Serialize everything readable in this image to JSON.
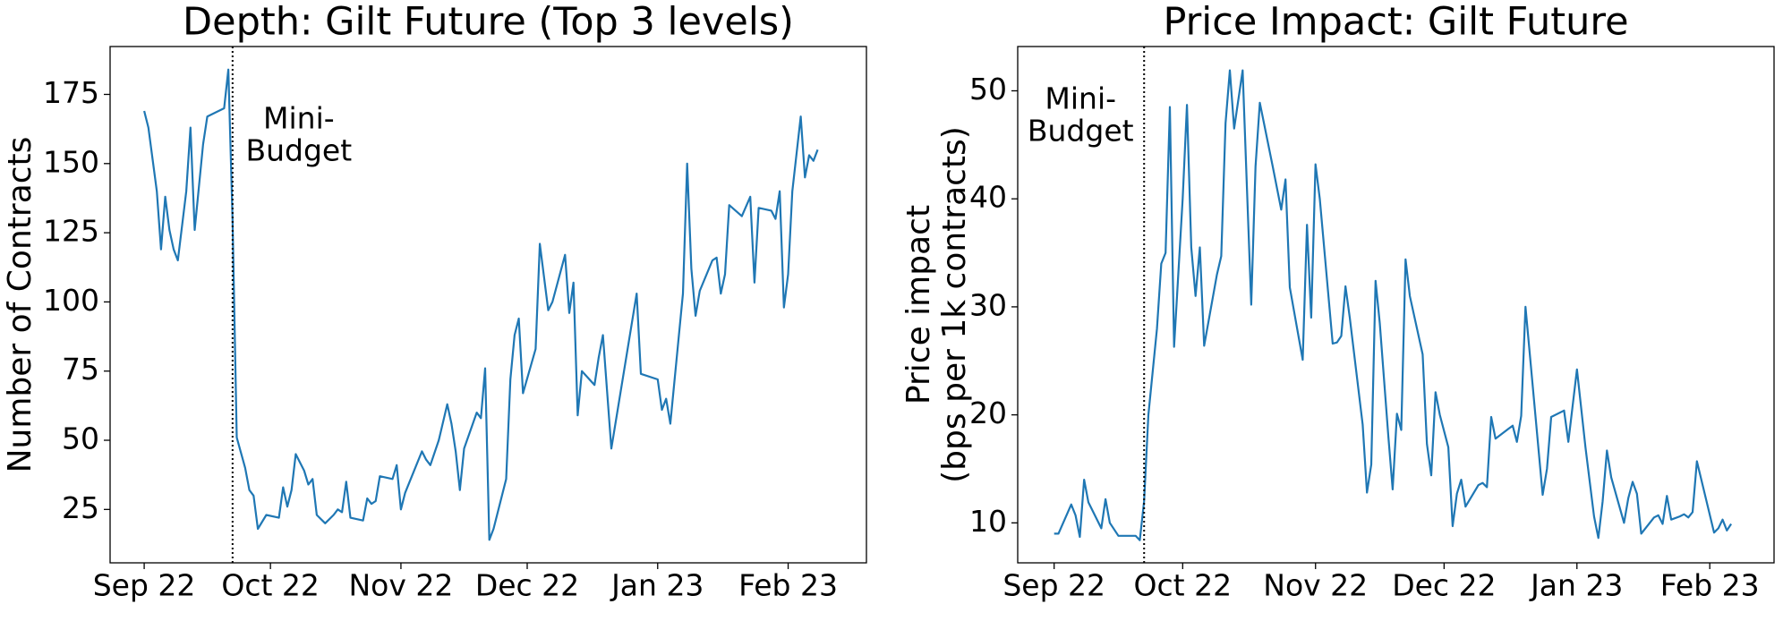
{
  "chart_data": [
    {
      "type": "line",
      "title": "Depth: Gilt Future (Top 3 levels)",
      "ylabel": [
        "Number of Contracts"
      ],
      "color": "#1f77b4",
      "annotation": [
        "Mini-",
        "Budget"
      ],
      "vline_x": 21,
      "xlim": [
        -8.1,
        171.6
      ],
      "ylim": [
        5.7,
        192.3
      ],
      "xticks": [
        {
          "value": 0,
          "label": "Sep 22"
        },
        {
          "value": 30,
          "label": "Oct 22"
        },
        {
          "value": 61,
          "label": "Nov 22"
        },
        {
          "value": 91,
          "label": "Dec 22"
        },
        {
          "value": 122,
          "label": "Jan 23"
        },
        {
          "value": 153,
          "label": "Feb 23"
        }
      ],
      "yticks": [
        25,
        50,
        75,
        100,
        125,
        150,
        175
      ],
      "x": [
        0,
        1,
        3,
        4,
        5,
        6,
        7,
        8,
        10,
        11,
        12,
        14,
        15,
        19,
        20,
        21,
        22,
        24,
        25,
        26,
        27,
        29,
        32,
        33,
        34,
        35,
        36,
        38,
        39,
        40,
        41,
        43,
        45,
        46,
        47,
        48,
        49,
        52,
        53,
        54,
        55,
        56,
        59,
        60,
        61,
        62,
        66,
        67,
        68,
        70,
        72,
        73,
        74,
        75,
        76,
        79,
        80,
        81,
        82,
        83,
        86,
        87,
        88,
        89,
        90,
        93,
        94,
        96,
        97,
        100,
        101,
        102,
        103,
        104,
        107,
        108,
        109,
        111,
        117,
        118,
        122,
        123,
        124,
        125,
        128,
        129,
        130,
        131,
        132,
        135,
        136,
        137,
        138,
        139,
        142,
        144,
        145,
        146,
        149,
        150,
        151,
        152,
        153,
        154,
        156,
        157,
        158,
        159,
        160
      ],
      "values": [
        169,
        163,
        140,
        119,
        138,
        126,
        119,
        115,
        140,
        163,
        126,
        157,
        167,
        170,
        184,
        130,
        51,
        40,
        32,
        30,
        18,
        23,
        22,
        33,
        26,
        32,
        45,
        39,
        34,
        36,
        23,
        20,
        23,
        25,
        24,
        35,
        22,
        21,
        29,
        27,
        28,
        37,
        36,
        41,
        25,
        31,
        46,
        43,
        41,
        50,
        63,
        56,
        46,
        32,
        47,
        60,
        58,
        76,
        14,
        18,
        36,
        72,
        88,
        94,
        67,
        83,
        121,
        97,
        100,
        117,
        96,
        107,
        59,
        75,
        70,
        80,
        88,
        47,
        103,
        74,
        72,
        61,
        65,
        56,
        103,
        150,
        112,
        95,
        104,
        115,
        116,
        103,
        110,
        135,
        131,
        138,
        107,
        134,
        133,
        130,
        140,
        98,
        110,
        140,
        167,
        145,
        153,
        151,
        155
      ]
    },
    {
      "type": "line",
      "title": "Price Impact: Gilt Future",
      "ylabel": [
        "Price impact",
        "(bps per 1k contracts)"
      ],
      "color": "#1f77b4",
      "annotation": [
        "Mini-",
        "Budget"
      ],
      "vline_x": 21,
      "xlim": [
        -8.5,
        168
      ],
      "ylim": [
        6.3,
        54.1
      ],
      "xticks": [
        {
          "value": 0,
          "label": "Sep 22"
        },
        {
          "value": 30,
          "label": "Oct 22"
        },
        {
          "value": 61,
          "label": "Nov 22"
        },
        {
          "value": 91,
          "label": "Dec 22"
        },
        {
          "value": 122,
          "label": "Jan 23"
        },
        {
          "value": 153,
          "label": "Feb 23"
        }
      ],
      "yticks": [
        10,
        20,
        30,
        40,
        50
      ],
      "x": [
        0,
        1,
        4,
        5,
        6,
        7,
        8,
        11,
        12,
        13,
        15,
        19,
        20,
        21,
        22,
        24,
        25,
        26,
        27,
        28,
        30,
        31,
        32,
        33,
        34,
        35,
        38,
        39,
        40,
        41,
        42,
        44,
        45,
        46,
        47,
        48,
        51,
        53,
        54,
        55,
        58,
        59,
        60,
        61,
        62,
        65,
        66,
        67,
        68,
        69,
        72,
        73,
        74,
        75,
        76,
        78,
        79,
        80,
        81,
        82,
        83,
        86,
        87,
        88,
        89,
        90,
        92,
        93,
        94,
        95,
        96,
        99,
        100,
        101,
        102,
        103,
        106,
        107,
        108,
        109,
        110,
        114,
        115,
        116,
        119,
        120,
        122,
        124,
        126,
        127,
        128,
        129,
        130,
        133,
        134,
        135,
        136,
        137,
        140,
        141,
        142,
        143,
        144,
        146,
        147,
        148,
        149,
        150,
        154,
        155,
        156,
        157,
        158
      ],
      "values": [
        9,
        9,
        11.7,
        10.7,
        8.7,
        14,
        11.9,
        9.5,
        12.2,
        10,
        8.8,
        8.8,
        8.4,
        12,
        20,
        28,
        34,
        35,
        48.5,
        26.3,
        40,
        48.7,
        35.5,
        31,
        35.5,
        26.4,
        33,
        34.7,
        47,
        51.9,
        46.5,
        51.9,
        41,
        30.2,
        43,
        48.9,
        43,
        39,
        41.8,
        31.8,
        25.1,
        37.6,
        29,
        43.2,
        40,
        26.6,
        26.7,
        27.3,
        31.9,
        29,
        19.1,
        12.8,
        15.4,
        32.4,
        28.5,
        18,
        13.1,
        20.1,
        18.6,
        34.4,
        31,
        25.6,
        17.3,
        14.4,
        22.1,
        20,
        17,
        9.7,
        12.7,
        14,
        11.5,
        13.5,
        13.7,
        13.3,
        19.8,
        17.8,
        18.7,
        19,
        17.5,
        19.9,
        30,
        12.6,
        15,
        19.8,
        20.4,
        17.5,
        24.2,
        17,
        10.6,
        8.6,
        12,
        16.7,
        14.2,
        10,
        12.3,
        13.8,
        12.7,
        9,
        10.5,
        10.7,
        9.9,
        12.5,
        10.3,
        10.6,
        10.8,
        10.5,
        11,
        15.7,
        9.1,
        9.5,
        10.3,
        9.3,
        9.9
      ]
    }
  ]
}
